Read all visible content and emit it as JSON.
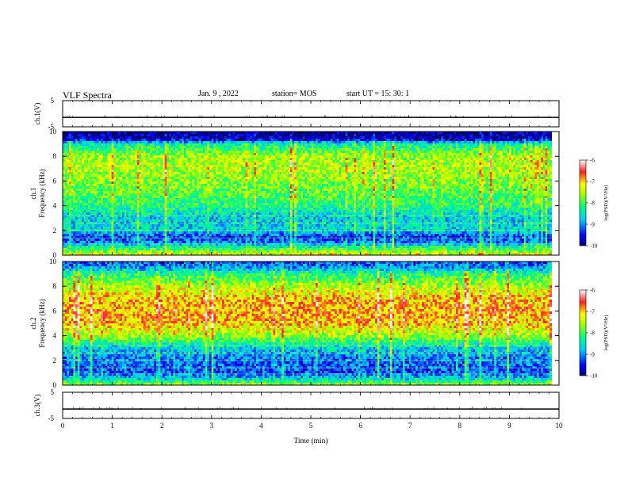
{
  "header": {
    "title": "VLF Spectra",
    "date": "Jan. 9 , 2022",
    "station": "station= MOS",
    "start": "start  UT =   15: 30: 1"
  },
  "chart_data": [
    {
      "type": "line",
      "name": "ch1-voltage",
      "ylabel": "ch.1(V)",
      "ylim": [
        -5,
        5
      ],
      "yticks": [
        "5",
        "-5"
      ],
      "x": [
        0,
        10
      ],
      "values": [
        -1.4,
        -1.4
      ]
    },
    {
      "type": "heatmap",
      "name": "ch1-spectrogram",
      "ylabel": "ch.1\nFrequency (kHz)",
      "ylim": [
        0,
        10
      ],
      "yticks": [
        "0",
        "2",
        "4",
        "6",
        "8",
        "10"
      ],
      "xlim": [
        0,
        9.85
      ],
      "colorbar": {
        "label": "log(PSD)(V²/Hz)",
        "ticks": [
          "-6",
          "-7",
          "-8",
          "-9",
          "-10"
        ],
        "range": [
          -10,
          -6
        ]
      },
      "bands_khz_level": [
        [
          0,
          -7.2
        ],
        [
          0.5,
          -8.0
        ],
        [
          1.0,
          -9.0
        ],
        [
          1.5,
          -9.4
        ],
        [
          2.0,
          -8.6
        ],
        [
          3.0,
          -8.7
        ],
        [
          4.0,
          -8.2
        ],
        [
          5.0,
          -7.9
        ],
        [
          6.0,
          -7.7
        ],
        [
          7.0,
          -7.5
        ],
        [
          8.0,
          -7.6
        ],
        [
          9.0,
          -8.4
        ],
        [
          9.4,
          -9.8
        ],
        [
          10.0,
          -9.9
        ]
      ]
    },
    {
      "type": "heatmap",
      "name": "ch2-spectrogram",
      "ylabel": "ch.2\nFrequency (kHz)",
      "ylim": [
        0,
        10
      ],
      "yticks": [
        "0",
        "2",
        "4",
        "6",
        "8",
        "10"
      ],
      "xlim": [
        0,
        9.85
      ],
      "colorbar": {
        "label": "log(PSD)(V²/Hz)",
        "ticks": [
          "-6",
          "-7",
          "-8",
          "-9",
          "-10"
        ],
        "range": [
          -10,
          -6
        ]
      },
      "bands_khz_level": [
        [
          0,
          -7.6
        ],
        [
          0.5,
          -8.6
        ],
        [
          1.0,
          -9.3
        ],
        [
          2.0,
          -9.1
        ],
        [
          3.0,
          -8.7
        ],
        [
          4.0,
          -7.6
        ],
        [
          5.0,
          -7.0
        ],
        [
          6.0,
          -6.9
        ],
        [
          7.0,
          -7.0
        ],
        [
          8.0,
          -7.5
        ],
        [
          9.0,
          -8.2
        ],
        [
          9.5,
          -8.9
        ],
        [
          10.0,
          -9.3
        ]
      ]
    },
    {
      "type": "line",
      "name": "ch3-voltage",
      "ylabel": "ch.3(V)",
      "ylim": [
        -5,
        5
      ],
      "yticks": [
        "5",
        "-5"
      ],
      "x": [
        0,
        10
      ],
      "values": [
        -1.4,
        -1.4
      ]
    }
  ],
  "x_axis": {
    "label": "Time (min)",
    "range": [
      0,
      10
    ],
    "ticks": [
      "0",
      "1",
      "2",
      "3",
      "4",
      "5",
      "6",
      "7",
      "8",
      "9",
      "10"
    ]
  }
}
